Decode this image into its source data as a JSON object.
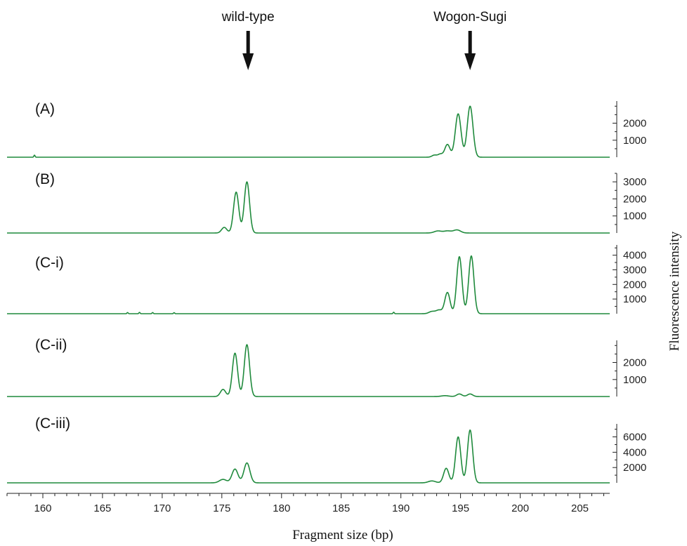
{
  "chart_data": {
    "type": "line",
    "xlabel": "Fragment size (bp)",
    "ylabel": "Fluorescence intensity",
    "xlim": [
      157,
      207.5
    ],
    "x_ticks": [
      160,
      165,
      170,
      175,
      180,
      185,
      190,
      195,
      200,
      205
    ],
    "line_color": "#1f8a3c",
    "markers": [
      {
        "label": "wild-type",
        "x": 177.2
      },
      {
        "label": "Wogon-Sugi",
        "x": 195.8
      }
    ],
    "series": [
      {
        "name": "(A)",
        "ylim": [
          0,
          3300
        ],
        "y_ticks": [
          1000,
          2000
        ],
        "peaks": [
          {
            "x": 159.3,
            "height": 120,
            "width": 0.05
          },
          {
            "x": 192.8,
            "height": 120,
            "width": 0.2
          },
          {
            "x": 193.3,
            "height": 180,
            "width": 0.2
          },
          {
            "x": 193.9,
            "height": 750,
            "width": 0.22
          },
          {
            "x": 194.8,
            "height": 2550,
            "width": 0.24
          },
          {
            "x": 195.8,
            "height": 3000,
            "width": 0.24
          }
        ]
      },
      {
        "name": "(B)",
        "ylim": [
          0,
          3500
        ],
        "y_ticks": [
          1000,
          2000,
          3000
        ],
        "peaks": [
          {
            "x": 175.2,
            "height": 330,
            "width": 0.22
          },
          {
            "x": 176.2,
            "height": 2400,
            "width": 0.22
          },
          {
            "x": 177.1,
            "height": 3000,
            "width": 0.22
          },
          {
            "x": 193.1,
            "height": 120,
            "width": 0.3
          },
          {
            "x": 193.9,
            "height": 120,
            "width": 0.3
          },
          {
            "x": 194.7,
            "height": 180,
            "width": 0.3
          }
        ]
      },
      {
        "name": "(C-i)",
        "ylim": [
          0,
          4700
        ],
        "y_ticks": [
          1000,
          2000,
          3000,
          4000
        ],
        "peaks": [
          {
            "x": 167.1,
            "height": 80,
            "width": 0.05
          },
          {
            "x": 168.1,
            "height": 90,
            "width": 0.05
          },
          {
            "x": 169.2,
            "height": 80,
            "width": 0.05
          },
          {
            "x": 171.0,
            "height": 70,
            "width": 0.05
          },
          {
            "x": 189.4,
            "height": 100,
            "width": 0.05
          },
          {
            "x": 192.6,
            "height": 150,
            "width": 0.25
          },
          {
            "x": 193.2,
            "height": 250,
            "width": 0.25
          },
          {
            "x": 193.9,
            "height": 1450,
            "width": 0.22
          },
          {
            "x": 194.9,
            "height": 3900,
            "width": 0.22
          },
          {
            "x": 195.9,
            "height": 3950,
            "width": 0.22
          }
        ]
      },
      {
        "name": "(C-ii)",
        "ylim": [
          0,
          3300
        ],
        "y_ticks": [
          1000,
          2000
        ],
        "peaks": [
          {
            "x": 175.1,
            "height": 420,
            "width": 0.22
          },
          {
            "x": 176.1,
            "height": 2550,
            "width": 0.22
          },
          {
            "x": 177.1,
            "height": 3050,
            "width": 0.22
          },
          {
            "x": 193.7,
            "height": 50,
            "width": 0.3
          },
          {
            "x": 194.9,
            "height": 150,
            "width": 0.22
          },
          {
            "x": 195.8,
            "height": 150,
            "width": 0.22
          }
        ]
      },
      {
        "name": "(C-iii)",
        "ylim": [
          0,
          7700
        ],
        "y_ticks": [
          2000,
          4000,
          6000
        ],
        "peaks": [
          {
            "x": 175.1,
            "height": 450,
            "width": 0.3
          },
          {
            "x": 176.1,
            "height": 1800,
            "width": 0.25
          },
          {
            "x": 177.1,
            "height": 2600,
            "width": 0.25
          },
          {
            "x": 192.6,
            "height": 250,
            "width": 0.3
          },
          {
            "x": 193.8,
            "height": 1900,
            "width": 0.22
          },
          {
            "x": 194.8,
            "height": 6000,
            "width": 0.22
          },
          {
            "x": 195.8,
            "height": 6900,
            "width": 0.22
          }
        ]
      }
    ]
  }
}
